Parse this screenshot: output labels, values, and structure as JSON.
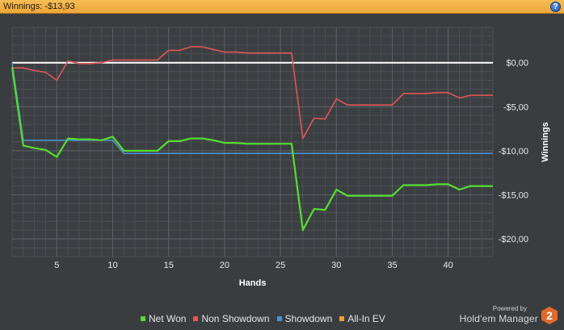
{
  "header": {
    "title": "Winnings: -$13,93",
    "help_label": "?"
  },
  "chart_data": {
    "type": "line",
    "xlabel": "Hands",
    "ylabel": "Winnings",
    "xlim": [
      1,
      44
    ],
    "ylim": [
      -22,
      4
    ],
    "x_ticks": [
      5,
      10,
      15,
      20,
      25,
      30,
      35,
      40
    ],
    "y_ticks": [
      {
        "value": 0,
        "label": "$0,00"
      },
      {
        "value": -5,
        "label": "-$5,00"
      },
      {
        "value": -10,
        "label": "-$10,00"
      },
      {
        "value": -15,
        "label": "-$15,00"
      },
      {
        "value": -20,
        "label": "-$20,00"
      }
    ],
    "grid": true,
    "legend_position": "bottom",
    "zero_line_color": "#ffffff",
    "series": [
      {
        "name": "Net Won",
        "color": "#55dd33",
        "x": [
          1,
          2,
          3,
          4,
          5,
          6,
          7,
          8,
          9,
          10,
          11,
          12,
          13,
          14,
          15,
          16,
          17,
          18,
          19,
          20,
          21,
          22,
          23,
          24,
          25,
          26,
          27,
          28,
          29,
          30,
          31,
          32,
          33,
          34,
          35,
          36,
          37,
          38,
          39,
          40,
          41,
          42,
          43,
          44
        ],
        "y": [
          -0.5,
          -9.4,
          -9.7,
          -9.9,
          -10.7,
          -8.6,
          -8.7,
          -8.7,
          -8.8,
          -8.4,
          -10.0,
          -10.0,
          -10.0,
          -10.0,
          -8.9,
          -8.9,
          -8.6,
          -8.6,
          -8.8,
          -9.1,
          -9.1,
          -9.2,
          -9.2,
          -9.2,
          -9.2,
          -9.2,
          -19.0,
          -16.6,
          -16.7,
          -14.4,
          -15.1,
          -15.1,
          -15.1,
          -15.1,
          -15.1,
          -13.9,
          -13.9,
          -13.9,
          -13.8,
          -13.8,
          -14.4,
          -14.0,
          -14.0,
          -14.0
        ]
      },
      {
        "name": "Non Showdown",
        "color": "#e05555",
        "x": [
          1,
          2,
          3,
          4,
          5,
          6,
          7,
          8,
          9,
          10,
          11,
          12,
          13,
          14,
          15,
          16,
          17,
          18,
          19,
          20,
          21,
          22,
          23,
          24,
          25,
          26,
          27,
          28,
          29,
          30,
          31,
          32,
          33,
          34,
          35,
          36,
          37,
          38,
          39,
          40,
          41,
          42,
          43,
          44
        ],
        "y": [
          -0.6,
          -0.6,
          -0.9,
          -1.1,
          -2.0,
          0.2,
          -0.1,
          -0.1,
          0.0,
          0.3,
          0.3,
          0.3,
          0.3,
          0.3,
          1.4,
          1.4,
          1.8,
          1.8,
          1.5,
          1.2,
          1.2,
          1.1,
          1.1,
          1.1,
          1.1,
          1.1,
          -8.6,
          -6.3,
          -6.4,
          -4.1,
          -4.8,
          -4.8,
          -4.8,
          -4.8,
          -4.8,
          -3.5,
          -3.5,
          -3.5,
          -3.4,
          -3.4,
          -4.0,
          -3.7,
          -3.7,
          -3.7
        ]
      },
      {
        "name": "Showdown",
        "color": "#4a90d0",
        "x": [
          1,
          2,
          3,
          4,
          5,
          6,
          7,
          8,
          9,
          10,
          11,
          12,
          13,
          14,
          15,
          16,
          17,
          18,
          19,
          20,
          21,
          22,
          23,
          24,
          25,
          26,
          27,
          28,
          29,
          30,
          31,
          32,
          33,
          34,
          35,
          36,
          37,
          38,
          39,
          40,
          41,
          42,
          43,
          44
        ],
        "y": [
          0,
          -8.8,
          -8.8,
          -8.8,
          -8.8,
          -8.8,
          -8.8,
          -8.8,
          -8.8,
          -8.8,
          -10.3,
          -10.3,
          -10.3,
          -10.3,
          -10.3,
          -10.3,
          -10.3,
          -10.3,
          -10.3,
          -10.3,
          -10.3,
          -10.3,
          -10.3,
          -10.3,
          -10.3,
          -10.3,
          -10.3,
          -10.3,
          -10.3,
          -10.3,
          -10.3,
          -10.3,
          -10.3,
          -10.3,
          -10.3,
          -10.3,
          -10.3,
          -10.3,
          -10.3,
          -10.3,
          -10.3,
          -10.3,
          -10.3,
          -10.3
        ]
      },
      {
        "name": "All-In EV",
        "color": "#f0a030",
        "x": [],
        "y": []
      }
    ]
  },
  "branding": {
    "powered_by": "Powered by",
    "product": "Hold'em Manager",
    "badge": "2",
    "badge_color": "#e06a2a"
  }
}
